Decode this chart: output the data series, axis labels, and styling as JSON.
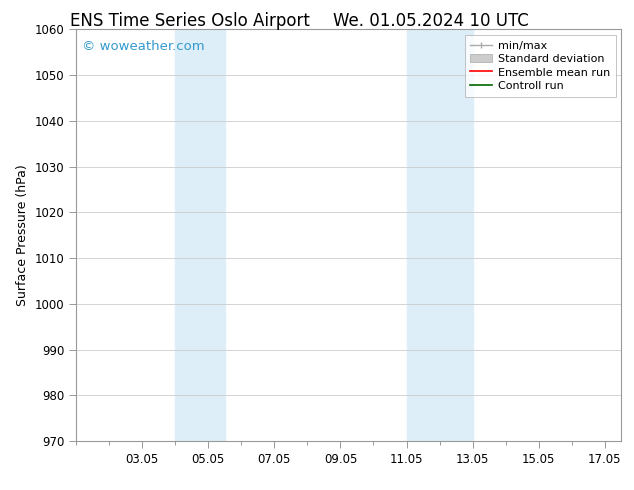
{
  "title_left": "ENS Time Series Oslo Airport",
  "title_right": "We. 01.05.2024 10 UTC",
  "ylabel": "Surface Pressure (hPa)",
  "ylim": [
    970,
    1060
  ],
  "yticks": [
    970,
    980,
    990,
    1000,
    1010,
    1020,
    1030,
    1040,
    1050,
    1060
  ],
  "x_min": 1.0,
  "x_max": 17.5,
  "xtick_labels": [
    "03.05",
    "05.05",
    "07.05",
    "09.05",
    "11.05",
    "13.05",
    "15.05",
    "17.05"
  ],
  "xtick_positions": [
    3,
    5,
    7,
    9,
    11,
    13,
    15,
    17
  ],
  "shaded_bands": [
    {
      "x_start": 4.0,
      "x_end": 5.5
    },
    {
      "x_start": 11.0,
      "x_end": 13.0
    }
  ],
  "shaded_color": "#ddeef8",
  "watermark_text": "© woweather.com",
  "watermark_color": "#3399cc",
  "bg_color": "#ffffff",
  "spine_color": "#999999",
  "tick_color": "#333333",
  "axis_tick_fontsize": 8.5,
  "title_fontsize": 12,
  "ylabel_fontsize": 9,
  "legend_fontsize": 8
}
